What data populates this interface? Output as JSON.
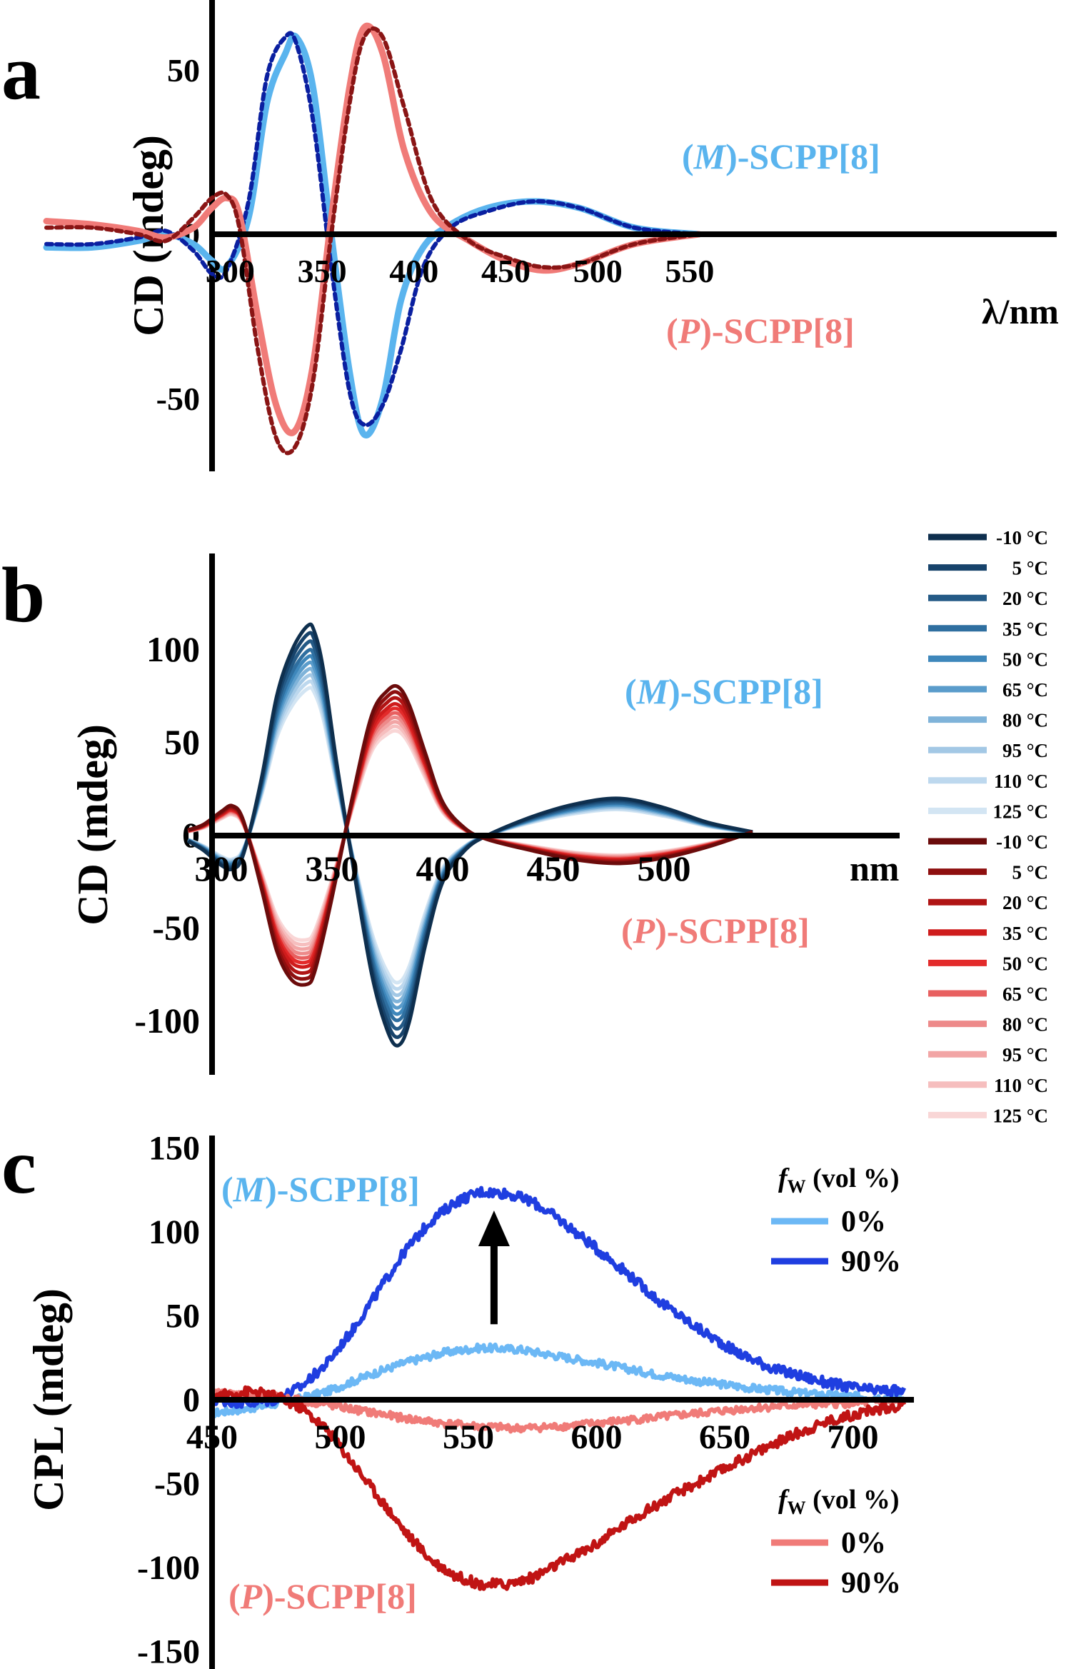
{
  "chart_data": [
    {
      "panel": "a",
      "type": "line",
      "ylabel": "CD (mdeg)",
      "xlabel": "λ/nm",
      "xlim": [
        200,
        555
      ],
      "ylim": [
        -78,
        80
      ],
      "x_ticks": [
        300,
        350,
        400,
        450,
        500,
        550
      ],
      "y_ticks": [
        50,
        0,
        -50
      ],
      "tick_labels_x": [
        "300",
        "350",
        "400",
        "450",
        "500",
        "550"
      ],
      "tick_labels_y": [
        "50",
        "0",
        "-50"
      ],
      "annotations": [
        {
          "prefix": "(",
          "italic": "M",
          "suffix": ")-SCPP[8]",
          "color": "#5ab4ee"
        },
        {
          "prefix": "(",
          "italic": "P",
          "suffix": ")-SCPP[8]",
          "color": "#f07b78"
        }
      ],
      "series": [
        {
          "color": "#5ab4ee",
          "style": "solid",
          "x": [
            200,
            225,
            250,
            265,
            280,
            290,
            298,
            310,
            320,
            330,
            336,
            345,
            355,
            365,
            373,
            383,
            393,
            405,
            420,
            440,
            465,
            490,
            520,
            555
          ],
          "y": [
            -4,
            -4,
            -2,
            0,
            -3,
            -8,
            -10,
            5,
            40,
            55,
            60,
            45,
            0,
            -42,
            -61,
            -50,
            -20,
            -4,
            3,
            8,
            10,
            8,
            2,
            0
          ]
        },
        {
          "color": "#0a1fa0",
          "style": "dotted",
          "x": [
            200,
            225,
            250,
            265,
            280,
            290,
            298,
            310,
            320,
            330,
            336,
            345,
            355,
            365,
            373,
            383,
            393,
            405,
            420,
            440,
            465,
            490,
            520,
            555
          ],
          "y": [
            -3,
            -3,
            -1,
            1,
            -5,
            -12,
            -11,
            10,
            48,
            60,
            58,
            35,
            -10,
            -48,
            -58,
            -52,
            -35,
            -10,
            2,
            7,
            10,
            8,
            2,
            0
          ]
        },
        {
          "color": "#f07b78",
          "style": "solid",
          "x": [
            200,
            225,
            250,
            265,
            280,
            290,
            298,
            305,
            315,
            325,
            335,
            345,
            355,
            365,
            373,
            383,
            395,
            410,
            430,
            450,
            470,
            490,
            520,
            555
          ],
          "y": [
            4,
            3,
            1,
            -1,
            2,
            8,
            11,
            6,
            -25,
            -52,
            -60,
            -40,
            5,
            45,
            63,
            55,
            25,
            6,
            -2,
            -8,
            -11,
            -9,
            -3,
            0
          ]
        },
        {
          "color": "#8a1515",
          "style": "dotted",
          "x": [
            200,
            225,
            250,
            265,
            280,
            290,
            298,
            305,
            315,
            325,
            335,
            345,
            355,
            365,
            373,
            383,
            395,
            410,
            430,
            450,
            470,
            490,
            520,
            555
          ],
          "y": [
            2,
            2,
            0,
            -2,
            5,
            11,
            12,
            2,
            -35,
            -62,
            -65,
            -45,
            0,
            40,
            60,
            60,
            38,
            10,
            -2,
            -7,
            -10,
            -9,
            -3,
            0
          ]
        }
      ]
    },
    {
      "panel": "b",
      "type": "line",
      "ylabel": "CD (mdeg)",
      "xlabel": "nm",
      "xlim": [
        285,
        540
      ],
      "ylim": [
        -165,
        135
      ],
      "x_ticks": [
        300,
        350,
        400,
        450,
        500
      ],
      "y_ticks": [
        100,
        50,
        0,
        -50,
        -100
      ],
      "tick_labels_x": [
        "300",
        "350",
        "400",
        "450",
        "500"
      ],
      "tick_labels_y": [
        "100",
        "50",
        "0",
        "-50",
        "-100"
      ],
      "annotations": [
        {
          "prefix": "(",
          "italic": "M",
          "suffix": ")-SCPP[8]",
          "color": "#5ab4ee"
        },
        {
          "prefix": "(",
          "italic": "P",
          "suffix": ")-SCPP[8]",
          "color": "#f07b78"
        }
      ],
      "base_M": {
        "x": [
          285,
          292,
          300,
          305,
          310,
          318,
          325,
          332,
          339,
          342,
          346,
          352,
          360,
          368,
          375,
          380,
          385,
          392,
          400,
          410,
          420,
          440,
          460,
          480,
          500,
          520,
          540
        ],
        "y": [
          -3,
          -8,
          -16,
          -18,
          -10,
          30,
          75,
          100,
          113,
          110,
          90,
          40,
          -20,
          -75,
          -105,
          -113,
          -100,
          -60,
          -25,
          -8,
          0,
          10,
          17,
          20,
          15,
          7,
          2
        ]
      },
      "base_P": {
        "x": [
          285,
          292,
          300,
          305,
          310,
          318,
          325,
          332,
          339,
          342,
          346,
          352,
          360,
          368,
          375,
          380,
          385,
          392,
          400,
          410,
          420,
          440,
          460,
          480,
          500,
          520,
          540
        ],
        "y": [
          3,
          6,
          13,
          16,
          8,
          -28,
          -62,
          -78,
          -80,
          -74,
          -55,
          -22,
          25,
          65,
          78,
          80,
          70,
          45,
          18,
          4,
          -2,
          -8,
          -13,
          -15,
          -12,
          -6,
          2
        ]
      },
      "temperature_scales": [
        1.0,
        0.96,
        0.92,
        0.88,
        0.85,
        0.82,
        0.79,
        0.76,
        0.73,
        0.7
      ],
      "legend": [
        {
          "label": "-10 °C",
          "color": "#0e2f4e"
        },
        {
          "label": "5 °C",
          "color": "#17436b"
        },
        {
          "label": "20 °C",
          "color": "#245a86"
        },
        {
          "label": "35 °C",
          "color": "#2f6fa0"
        },
        {
          "label": "50 °C",
          "color": "#3e87bb"
        },
        {
          "label": "65 °C",
          "color": "#5a9ccb"
        },
        {
          "label": "80 °C",
          "color": "#7fb3d9"
        },
        {
          "label": "95 °C",
          "color": "#a3c8e5"
        },
        {
          "label": "110 °C",
          "color": "#bdd8ee"
        },
        {
          "label": "125 °C",
          "color": "#d3e5f3"
        },
        {
          "label": "-10 °C",
          "color": "#6b0b0b"
        },
        {
          "label": "5 °C",
          "color": "#8e0f0f"
        },
        {
          "label": "20 °C",
          "color": "#b01414"
        },
        {
          "label": "35 °C",
          "color": "#cf1c1c"
        },
        {
          "label": "50 °C",
          "color": "#e32b2b"
        },
        {
          "label": "65 °C",
          "color": "#e86060"
        },
        {
          "label": "80 °C",
          "color": "#ed8a8a"
        },
        {
          "label": "95 °C",
          "color": "#f2a5a5"
        },
        {
          "label": "110 °C",
          "color": "#f6bebe"
        },
        {
          "label": "125 °C",
          "color": "#f9d6d6"
        }
      ]
    },
    {
      "panel": "c",
      "type": "line",
      "ylabel": "CPL (mdeg)",
      "xlim": [
        450,
        720
      ],
      "ylim": [
        -150,
        150
      ],
      "x_ticks": [
        450,
        500,
        550,
        600,
        650,
        700
      ],
      "y_ticks": [
        150,
        100,
        50,
        0,
        -50,
        -100,
        -150
      ],
      "tick_labels_x": [
        "450",
        "500",
        "550",
        "600",
        "650",
        "700"
      ],
      "tick_labels_y": [
        "150",
        "100",
        "50",
        "0",
        "-50",
        "-100",
        "-150"
      ],
      "annotations": [
        {
          "prefix": "(",
          "italic": "M",
          "suffix": ")-SCPP[8]",
          "color": "#5ab4ee"
        },
        {
          "prefix": "(",
          "italic": "P",
          "suffix": ")-SCPP[8]",
          "color": "#f07b78"
        }
      ],
      "legend_top": {
        "title_italic": "f",
        "title_sub": "W",
        "title_rest": " (vol %)",
        "items": [
          {
            "label": "0%",
            "color": "#6cb8f5"
          },
          {
            "label": "90%",
            "color": "#1f3ee0"
          }
        ]
      },
      "legend_bottom": {
        "title_italic": "f",
        "title_sub": "W",
        "title_rest": " (vol %)",
        "items": [
          {
            "label": "0%",
            "color": "#f07b78"
          },
          {
            "label": "90%",
            "color": "#c01414"
          }
        ]
      },
      "arrow": {
        "x": 560,
        "y_from": 45,
        "y_to": 100
      },
      "series": [
        {
          "name": "M 0%",
          "color": "#6cb8f5",
          "x": [
            450,
            465,
            480,
            495,
            510,
            525,
            540,
            555,
            570,
            585,
            600,
            620,
            640,
            660,
            680,
            700,
            720
          ],
          "y": [
            -8,
            -5,
            -1,
            5,
            14,
            22,
            28,
            31,
            30,
            26,
            22,
            16,
            11,
            7,
            4,
            2,
            1
          ]
        },
        {
          "name": "M 90%",
          "color": "#1f3ee0",
          "x": [
            450,
            465,
            475,
            485,
            495,
            505,
            515,
            525,
            535,
            545,
            555,
            565,
            575,
            585,
            595,
            610,
            625,
            640,
            655,
            670,
            690,
            705,
            720
          ],
          "y": [
            0,
            -2,
            0,
            8,
            22,
            42,
            65,
            88,
            106,
            118,
            124,
            123,
            118,
            108,
            96,
            78,
            58,
            42,
            28,
            18,
            10,
            6,
            5
          ]
        },
        {
          "name": "P 0%",
          "color": "#f07b78",
          "x": [
            450,
            465,
            480,
            495,
            510,
            525,
            540,
            555,
            570,
            585,
            600,
            620,
            640,
            660,
            680,
            700,
            720
          ],
          "y": [
            4,
            3,
            1,
            -3,
            -7,
            -11,
            -14,
            -16,
            -17,
            -16,
            -14,
            -11,
            -8,
            -5,
            -3,
            -2,
            -1
          ]
        },
        {
          "name": "P 90%",
          "color": "#c01414",
          "x": [
            450,
            465,
            475,
            485,
            495,
            505,
            515,
            525,
            535,
            545,
            555,
            565,
            575,
            585,
            600,
            615,
            630,
            645,
            660,
            675,
            690,
            705,
            720
          ],
          "y": [
            2,
            5,
            2,
            -5,
            -18,
            -38,
            -58,
            -78,
            -95,
            -105,
            -110,
            -110,
            -106,
            -98,
            -86,
            -70,
            -57,
            -45,
            -33,
            -22,
            -13,
            -7,
            -3
          ]
        }
      ]
    }
  ],
  "panel_labels": [
    "a",
    "b",
    "c"
  ]
}
